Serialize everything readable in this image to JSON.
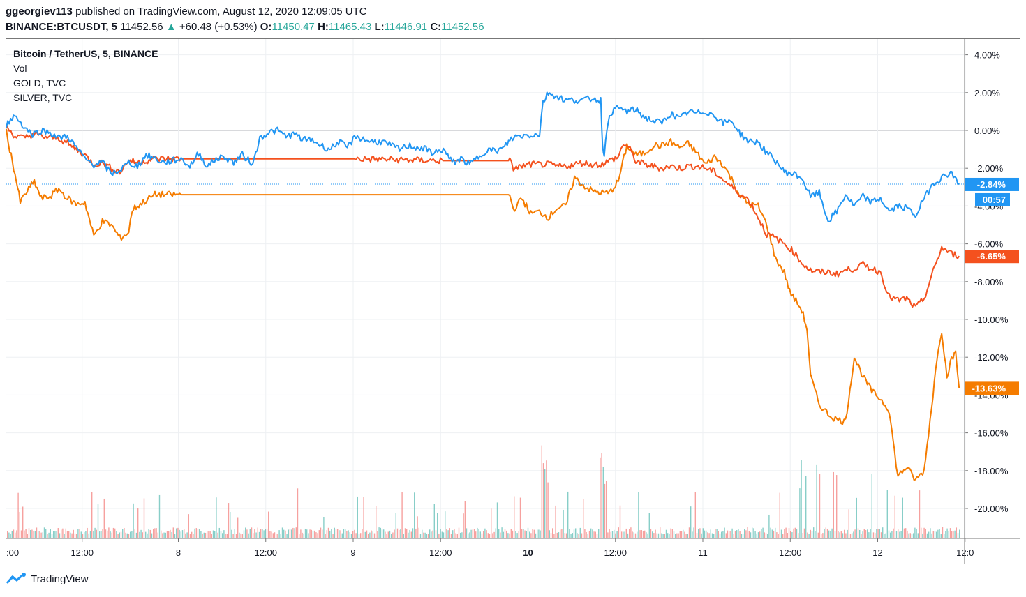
{
  "header": {
    "publisher": "ggeorgiev113",
    "published_text": "published on TradingView.com, August 12, 2020 12:09:05 UTC",
    "symbol": "BINANCE:BTCUSDT, 5",
    "last": "11452.56",
    "change": "+60.48 (+0.53%)",
    "o_label": "O:",
    "o_val": "11450.47",
    "h_label": "H:",
    "h_val": "11465.43",
    "l_label": "L:",
    "l_val": "11446.91",
    "c_label": "C:",
    "c_val": "11452.56"
  },
  "legend": {
    "title": "Bitcoin / TetherUS, 5, BINANCE",
    "vol": "Vol",
    "gold": "GOLD, TVC",
    "silver": "SILVER, TVC"
  },
  "branding": {
    "name": "TradingView",
    "icon": "tradingview-logo-icon"
  },
  "colors": {
    "btc": "#2196f3",
    "gold": "#f4511e",
    "silver": "#f57c00",
    "vol_up": "#26a69a",
    "vol_down": "#ef5350"
  },
  "chart_data": {
    "type": "line",
    "y_unit": "%",
    "y_ticks": [
      "4.00%",
      "2.00%",
      "0.00%",
      "-2.00%",
      "-4.00%",
      "-6.00%",
      "-8.00%",
      "-10.00%",
      "-12.00%",
      "-14.00%",
      "-16.00%",
      "-18.00%",
      "-20.00%"
    ],
    "ylim": [
      -21.5,
      4.8
    ],
    "x_ticks": [
      "12:00",
      "8",
      "12:00",
      "9",
      "12:00",
      "10",
      "12:00",
      "11",
      "12:00",
      "12",
      "12:0"
    ],
    "x_tick_first": ":00",
    "x_range_days": [
      7.0,
      12.5
    ],
    "grid": true,
    "series": [
      {
        "name": "Bitcoin / TetherUS",
        "key": "btc",
        "last_label": "-2.84%",
        "last_value": -2.84,
        "extra_label": "00:57",
        "points": [
          [
            7.0,
            0.3
          ],
          [
            7.05,
            0.8
          ],
          [
            7.1,
            0.2
          ],
          [
            7.15,
            -0.2
          ],
          [
            7.2,
            0.0
          ],
          [
            7.25,
            -0.1
          ],
          [
            7.3,
            -0.4
          ],
          [
            7.35,
            -0.3
          ],
          [
            7.4,
            -0.9
          ],
          [
            7.45,
            -1.5
          ],
          [
            7.5,
            -1.8
          ],
          [
            7.55,
            -1.7
          ],
          [
            7.6,
            -2.3
          ],
          [
            7.65,
            -2.1
          ],
          [
            7.7,
            -1.7
          ],
          [
            7.75,
            -1.9
          ],
          [
            7.8,
            -1.3
          ],
          [
            7.85,
            -1.5
          ],
          [
            7.9,
            -1.7
          ],
          [
            7.95,
            -1.6
          ],
          [
            8.0,
            -1.5
          ],
          [
            8.05,
            -1.9
          ],
          [
            8.1,
            -1.2
          ],
          [
            8.15,
            -1.9
          ],
          [
            8.2,
            -1.5
          ],
          [
            8.25,
            -1.4
          ],
          [
            8.3,
            -1.7
          ],
          [
            8.35,
            -1.3
          ],
          [
            8.4,
            -1.7
          ],
          [
            8.42,
            -1.5
          ],
          [
            8.45,
            -0.4
          ],
          [
            8.5,
            -0.1
          ],
          [
            8.55,
            0.0
          ],
          [
            8.6,
            -0.3
          ],
          [
            8.65,
            -0.2
          ],
          [
            8.7,
            -0.5
          ],
          [
            8.75,
            -0.5
          ],
          [
            8.8,
            -0.8
          ],
          [
            8.85,
            -1.0
          ],
          [
            8.9,
            -0.6
          ],
          [
            8.95,
            -0.9
          ],
          [
            9.0,
            -0.3
          ],
          [
            9.05,
            -0.5
          ],
          [
            9.1,
            -0.6
          ],
          [
            9.15,
            -0.6
          ],
          [
            9.2,
            -0.8
          ],
          [
            9.25,
            -1.0
          ],
          [
            9.3,
            -0.8
          ],
          [
            9.35,
            -0.9
          ],
          [
            9.4,
            -1.0
          ],
          [
            9.45,
            -1.2
          ],
          [
            9.5,
            -1.0
          ],
          [
            9.55,
            -1.7
          ],
          [
            9.6,
            -1.5
          ],
          [
            9.65,
            -1.8
          ],
          [
            9.7,
            -1.4
          ],
          [
            9.75,
            -1.0
          ],
          [
            9.8,
            -1.1
          ],
          [
            9.85,
            -0.9
          ],
          [
            9.88,
            -0.5
          ],
          [
            9.92,
            -0.3
          ],
          [
            10.05,
            -0.2
          ],
          [
            10.07,
            1.5
          ],
          [
            10.1,
            2.0
          ],
          [
            10.15,
            1.8
          ],
          [
            10.2,
            1.6
          ],
          [
            10.25,
            1.6
          ],
          [
            10.3,
            1.6
          ],
          [
            10.35,
            1.7
          ],
          [
            10.4,
            1.6
          ],
          [
            10.41,
            -0.8
          ],
          [
            10.42,
            -1.2
          ],
          [
            10.45,
            0.9
          ],
          [
            10.5,
            1.2
          ],
          [
            10.55,
            1.0
          ],
          [
            10.6,
            1.1
          ],
          [
            10.65,
            0.7
          ],
          [
            10.7,
            0.5
          ],
          [
            10.75,
            0.4
          ],
          [
            10.8,
            0.9
          ],
          [
            10.85,
            0.6
          ],
          [
            10.9,
            1.0
          ],
          [
            10.95,
            0.9
          ],
          [
            11.0,
            1.0
          ],
          [
            11.05,
            0.8
          ],
          [
            11.1,
            0.4
          ],
          [
            11.15,
            0.5
          ],
          [
            11.2,
            -0.2
          ],
          [
            11.25,
            -0.6
          ],
          [
            11.3,
            -0.6
          ],
          [
            11.35,
            -1.2
          ],
          [
            11.4,
            -1.6
          ],
          [
            11.45,
            -2.2
          ],
          [
            11.5,
            -2.3
          ],
          [
            11.55,
            -2.5
          ],
          [
            11.6,
            -3.5
          ],
          [
            11.65,
            -3.3
          ],
          [
            11.7,
            -4.8
          ],
          [
            11.75,
            -4.3
          ],
          [
            11.8,
            -3.4
          ],
          [
            11.85,
            -4.0
          ],
          [
            11.9,
            -3.5
          ],
          [
            11.95,
            -3.8
          ],
          [
            12.0,
            -3.6
          ],
          [
            12.05,
            -4.3
          ],
          [
            12.1,
            -4.0
          ],
          [
            12.15,
            -4.1
          ],
          [
            12.2,
            -4.5
          ],
          [
            12.25,
            -3.6
          ],
          [
            12.3,
            -2.8
          ],
          [
            12.35,
            -2.5
          ],
          [
            12.4,
            -2.2
          ],
          [
            12.45,
            -2.84
          ]
        ]
      },
      {
        "name": "GOLD, TVC",
        "key": "gold",
        "last_label": "-6.65%",
        "last_value": -6.65,
        "points": [
          [
            7.0,
            0.2
          ],
          [
            7.05,
            -0.3
          ],
          [
            7.1,
            -0.4
          ],
          [
            7.15,
            -0.2
          ],
          [
            7.2,
            -0.3
          ],
          [
            7.25,
            -0.4
          ],
          [
            7.3,
            -0.4
          ],
          [
            7.35,
            -0.7
          ],
          [
            7.4,
            -1.0
          ],
          [
            7.45,
            -1.3
          ],
          [
            7.5,
            -1.8
          ],
          [
            7.55,
            -1.7
          ],
          [
            7.6,
            -2.0
          ],
          [
            7.65,
            -2.2
          ],
          [
            7.7,
            -1.6
          ],
          [
            7.75,
            -1.7
          ],
          [
            7.8,
            -1.6
          ],
          [
            7.85,
            -1.5
          ],
          [
            7.9,
            -1.5
          ],
          [
            8.0,
            -1.5
          ],
          [
            8.5,
            -1.5
          ],
          [
            9.0,
            -1.5
          ],
          [
            9.5,
            -1.6
          ],
          [
            9.88,
            -1.6
          ],
          [
            9.9,
            -2.0
          ],
          [
            9.95,
            -1.9
          ],
          [
            10.0,
            -1.8
          ],
          [
            10.05,
            -1.8
          ],
          [
            10.1,
            -1.8
          ],
          [
            10.15,
            -1.9
          ],
          [
            10.2,
            -1.9
          ],
          [
            10.25,
            -1.8
          ],
          [
            10.3,
            -1.7
          ],
          [
            10.35,
            -1.8
          ],
          [
            10.4,
            -1.8
          ],
          [
            10.45,
            -1.6
          ],
          [
            10.5,
            -1.4
          ],
          [
            10.53,
            -0.7
          ],
          [
            10.56,
            -0.9
          ],
          [
            10.6,
            -1.6
          ],
          [
            10.65,
            -1.8
          ],
          [
            10.7,
            -1.9
          ],
          [
            10.75,
            -2.0
          ],
          [
            10.8,
            -1.9
          ],
          [
            10.85,
            -2.0
          ],
          [
            10.9,
            -1.9
          ],
          [
            10.95,
            -1.9
          ],
          [
            11.0,
            -2.0
          ],
          [
            11.05,
            -2.2
          ],
          [
            11.1,
            -2.6
          ],
          [
            11.15,
            -3.0
          ],
          [
            11.2,
            -3.4
          ],
          [
            11.25,
            -3.7
          ],
          [
            11.3,
            -4.6
          ],
          [
            11.35,
            -5.5
          ],
          [
            11.4,
            -5.7
          ],
          [
            11.45,
            -6.0
          ],
          [
            11.5,
            -6.4
          ],
          [
            11.55,
            -7.0
          ],
          [
            11.6,
            -7.4
          ],
          [
            11.65,
            -7.5
          ],
          [
            11.7,
            -7.5
          ],
          [
            11.75,
            -7.6
          ],
          [
            11.8,
            -7.4
          ],
          [
            11.85,
            -7.3
          ],
          [
            11.9,
            -7.1
          ],
          [
            11.95,
            -7.3
          ],
          [
            12.0,
            -7.5
          ],
          [
            12.05,
            -8.8
          ],
          [
            12.1,
            -9.0
          ],
          [
            12.15,
            -8.9
          ],
          [
            12.2,
            -9.4
          ],
          [
            12.25,
            -8.9
          ],
          [
            12.3,
            -7.5
          ],
          [
            12.35,
            -6.2
          ],
          [
            12.4,
            -6.5
          ],
          [
            12.45,
            -6.65
          ]
        ]
      },
      {
        "name": "SILVER, TVC",
        "key": "silver",
        "last_label": "-13.63%",
        "last_value": -13.63,
        "points": [
          [
            7.0,
            0.0
          ],
          [
            7.02,
            -1.0
          ],
          [
            7.05,
            -2.3
          ],
          [
            7.08,
            -3.8
          ],
          [
            7.12,
            -3.2
          ],
          [
            7.16,
            -2.7
          ],
          [
            7.2,
            -3.6
          ],
          [
            7.25,
            -3.5
          ],
          [
            7.3,
            -3.1
          ],
          [
            7.35,
            -3.6
          ],
          [
            7.4,
            -3.9
          ],
          [
            7.45,
            -3.8
          ],
          [
            7.5,
            -5.6
          ],
          [
            7.55,
            -4.8
          ],
          [
            7.6,
            -5.0
          ],
          [
            7.65,
            -5.7
          ],
          [
            7.7,
            -5.4
          ],
          [
            7.72,
            -4.2
          ],
          [
            7.75,
            -4.0
          ],
          [
            7.8,
            -3.7
          ],
          [
            7.85,
            -3.4
          ],
          [
            8.0,
            -3.4
          ],
          [
            8.5,
            -3.4
          ],
          [
            9.0,
            -3.4
          ],
          [
            9.5,
            -3.4
          ],
          [
            9.88,
            -3.4
          ],
          [
            9.9,
            -4.2
          ],
          [
            9.95,
            -3.6
          ],
          [
            10.0,
            -4.4
          ],
          [
            10.05,
            -4.3
          ],
          [
            10.1,
            -4.6
          ],
          [
            10.15,
            -4.1
          ],
          [
            10.2,
            -4.0
          ],
          [
            10.25,
            -2.5
          ],
          [
            10.3,
            -2.9
          ],
          [
            10.35,
            -3.2
          ],
          [
            10.4,
            -3.3
          ],
          [
            10.45,
            -3.3
          ],
          [
            10.5,
            -2.7
          ],
          [
            10.55,
            -0.8
          ],
          [
            10.6,
            -1.3
          ],
          [
            10.65,
            -1.2
          ],
          [
            10.7,
            -0.8
          ],
          [
            10.75,
            -0.8
          ],
          [
            10.8,
            -0.6
          ],
          [
            10.85,
            -0.9
          ],
          [
            10.9,
            -0.7
          ],
          [
            10.95,
            -1.2
          ],
          [
            11.0,
            -1.8
          ],
          [
            11.05,
            -1.4
          ],
          [
            11.1,
            -1.8
          ],
          [
            11.15,
            -2.6
          ],
          [
            11.2,
            -3.5
          ],
          [
            11.25,
            -3.9
          ],
          [
            11.3,
            -4.0
          ],
          [
            11.35,
            -5.0
          ],
          [
            11.4,
            -6.8
          ],
          [
            11.45,
            -7.5
          ],
          [
            11.48,
            -8.5
          ],
          [
            11.5,
            -8.8
          ],
          [
            11.55,
            -9.5
          ],
          [
            11.58,
            -10.5
          ],
          [
            11.6,
            -13.0
          ],
          [
            11.65,
            -14.5
          ],
          [
            11.7,
            -15.0
          ],
          [
            11.75,
            -15.3
          ],
          [
            11.8,
            -15.4
          ],
          [
            11.85,
            -12.0
          ],
          [
            11.9,
            -13.0
          ],
          [
            11.95,
            -13.8
          ],
          [
            12.0,
            -14.2
          ],
          [
            12.05,
            -14.8
          ],
          [
            12.08,
            -17.0
          ],
          [
            12.1,
            -18.3
          ],
          [
            12.15,
            -17.8
          ],
          [
            12.2,
            -18.5
          ],
          [
            12.25,
            -18.0
          ],
          [
            12.3,
            -14.0
          ],
          [
            12.33,
            -11.5
          ],
          [
            12.35,
            -10.6
          ],
          [
            12.38,
            -13.0
          ],
          [
            12.4,
            -12.3
          ],
          [
            12.43,
            -11.7
          ],
          [
            12.45,
            -13.63
          ]
        ]
      }
    ]
  }
}
